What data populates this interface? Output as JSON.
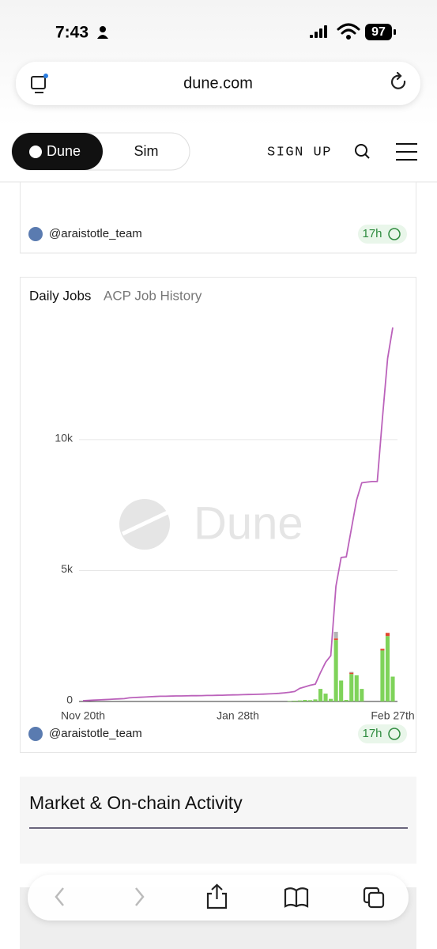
{
  "status_bar": {
    "time": "7:43",
    "battery": "97"
  },
  "browser": {
    "url": "dune.com"
  },
  "nav": {
    "tabs": [
      "Dune",
      "Sim"
    ],
    "sign_up": "SIGN UP"
  },
  "previous_card": {
    "author": "@araistotle_team",
    "age": "17h"
  },
  "chart_card": {
    "author": "@araistotle_team",
    "age": "17h"
  },
  "section": {
    "title": "Market & On-chain Activity"
  },
  "chart_data": {
    "type": "bar-line",
    "title": "Daily Jobs",
    "subtitle": "ACP Job History",
    "watermark": "Dune",
    "categories": [
      "Nov 20th",
      null,
      null,
      null,
      null,
      null,
      null,
      null,
      null,
      null,
      null,
      null,
      null,
      null,
      null,
      null,
      null,
      null,
      null,
      null,
      null,
      null,
      null,
      null,
      null,
      null,
      null,
      null,
      null,
      null,
      "Jan 28th",
      null,
      null,
      null,
      null,
      null,
      null,
      null,
      null,
      null,
      null,
      null,
      null,
      null,
      null,
      null,
      null,
      null,
      null,
      null,
      null,
      null,
      null,
      null,
      null,
      null,
      null,
      null,
      null,
      null,
      "Feb 27th"
    ],
    "series": [
      {
        "color": "#7fd35a",
        "kind": "bar",
        "values": [
          0,
          0,
          0,
          0,
          0,
          0,
          0,
          0,
          0,
          0,
          0,
          0,
          0,
          0,
          0,
          0,
          0,
          0,
          0,
          0,
          0,
          0,
          0,
          0,
          0,
          0,
          0,
          0,
          0,
          0,
          0,
          0,
          0,
          0,
          0,
          0,
          0,
          0,
          0,
          0,
          20,
          30,
          40,
          60,
          50,
          80,
          480,
          300,
          100,
          2350,
          800,
          60,
          1050,
          1000,
          480,
          0,
          0,
          0,
          1950,
          2500,
          950
        ]
      },
      {
        "color": "#e2452f",
        "kind": "bar",
        "values": [
          0,
          0,
          0,
          0,
          0,
          0,
          0,
          0,
          0,
          0,
          0,
          0,
          0,
          0,
          0,
          0,
          0,
          0,
          0,
          0,
          0,
          0,
          0,
          0,
          0,
          0,
          0,
          0,
          0,
          0,
          0,
          0,
          0,
          0,
          0,
          0,
          0,
          0,
          0,
          0,
          0,
          0,
          0,
          0,
          0,
          0,
          0,
          0,
          0,
          60,
          0,
          0,
          50,
          0,
          0,
          0,
          0,
          0,
          60,
          120,
          0
        ]
      },
      {
        "color": "#b4b4b4",
        "kind": "bar",
        "values": [
          0,
          0,
          0,
          0,
          0,
          0,
          0,
          0,
          0,
          0,
          0,
          0,
          0,
          0,
          0,
          0,
          0,
          0,
          0,
          0,
          0,
          0,
          0,
          0,
          0,
          0,
          0,
          0,
          0,
          0,
          0,
          0,
          0,
          0,
          0,
          0,
          0,
          0,
          0,
          0,
          0,
          0,
          0,
          0,
          0,
          0,
          0,
          0,
          0,
          250,
          0,
          0,
          30,
          0,
          0,
          0,
          0,
          0,
          0,
          0,
          0
        ]
      },
      {
        "color": "#bb62bb",
        "kind": "line",
        "values": [
          30,
          40,
          50,
          60,
          70,
          80,
          90,
          100,
          110,
          140,
          150,
          160,
          170,
          180,
          190,
          200,
          200,
          205,
          210,
          210,
          215,
          220,
          220,
          225,
          230,
          230,
          235,
          240,
          245,
          250,
          255,
          260,
          265,
          270,
          275,
          280,
          290,
          300,
          310,
          330,
          350,
          380,
          500,
          560,
          620,
          660,
          1100,
          1500,
          1750,
          4400,
          5500,
          5520,
          6600,
          7700,
          8350,
          8380,
          8400,
          8400,
          10800,
          13100,
          14280
        ]
      }
    ],
    "ylim": [
      0,
      14800
    ],
    "yticks": [
      0,
      {
        "value": 5000,
        "label": "5k"
      },
      {
        "value": 10000,
        "label": "10k"
      }
    ],
    "grid": true
  }
}
